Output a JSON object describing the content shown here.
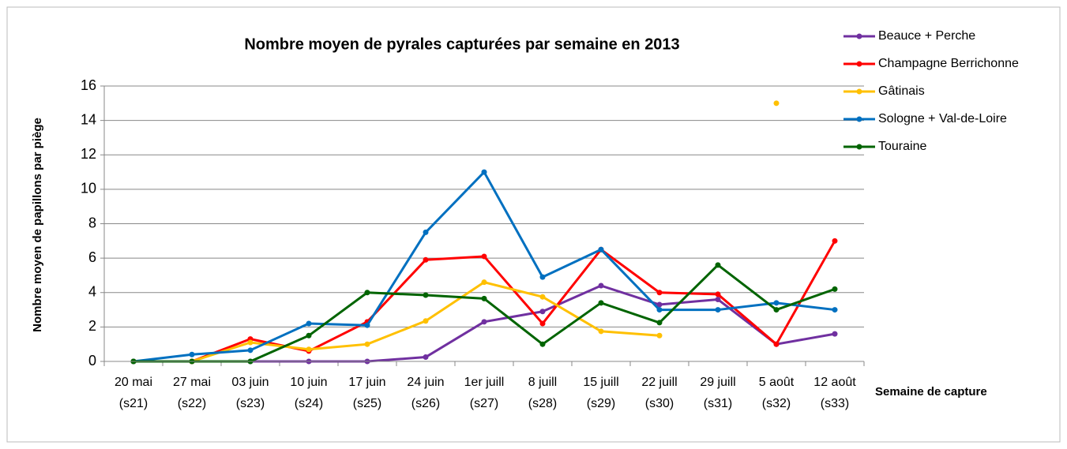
{
  "chart_data": {
    "type": "line",
    "title": "Nombre moyen de pyrales capturées par semaine en 2013",
    "y_label": "Nombre moyen de papillons par piège",
    "x_label": "Semaine de capture",
    "categories": [
      [
        "20 mai",
        "(s21)"
      ],
      [
        "27 mai",
        "(s22)"
      ],
      [
        "03 juin",
        "(s23)"
      ],
      [
        "10 juin",
        "(s24)"
      ],
      [
        "17 juin",
        "(s25)"
      ],
      [
        "24 juin",
        "(s26)"
      ],
      [
        "1er juill",
        "(s27)"
      ],
      [
        "8 juill",
        "(s28)"
      ],
      [
        "15 juill",
        "(s29)"
      ],
      [
        "22 juill",
        "(s30)"
      ],
      [
        "29 juill",
        "(s31)"
      ],
      [
        "5 août",
        "(s32)"
      ],
      [
        "12 août",
        "(s33)"
      ]
    ],
    "ylim": [
      0,
      16
    ],
    "yticks": [
      0,
      2,
      4,
      6,
      8,
      10,
      12,
      14,
      16
    ],
    "grid": true,
    "legend": "right",
    "series": [
      {
        "name": "Beauce + Perche",
        "color": "#7030a0",
        "values": [
          0,
          0,
          0,
          0,
          0,
          0.25,
          2.3,
          2.9,
          4.4,
          3.3,
          3.6,
          1,
          1.6
        ]
      },
      {
        "name": "Champagne Berrichonne",
        "color": "#ff0000",
        "values": [
          0,
          0,
          1.3,
          0.6,
          2.3,
          5.9,
          6.1,
          2.2,
          6.5,
          4,
          3.9,
          1,
          7
        ]
      },
      {
        "name": "Gâtinais",
        "color": "#ffc000",
        "values": [
          0,
          0,
          1.1,
          0.7,
          1,
          2.35,
          4.6,
          3.75,
          1.75,
          1.5,
          null,
          15,
          null
        ]
      },
      {
        "name": "Sologne + Val-de-Loire",
        "color": "#0070c0",
        "values": [
          0,
          0.4,
          0.65,
          2.2,
          2.1,
          7.5,
          11,
          4.9,
          6.5,
          3,
          3,
          3.4,
          3
        ]
      },
      {
        "name": "Touraine",
        "color": "#006400",
        "values": [
          0,
          0,
          0,
          1.5,
          4,
          3.85,
          3.65,
          1,
          3.4,
          2.25,
          5.6,
          3,
          4.2
        ]
      }
    ]
  }
}
